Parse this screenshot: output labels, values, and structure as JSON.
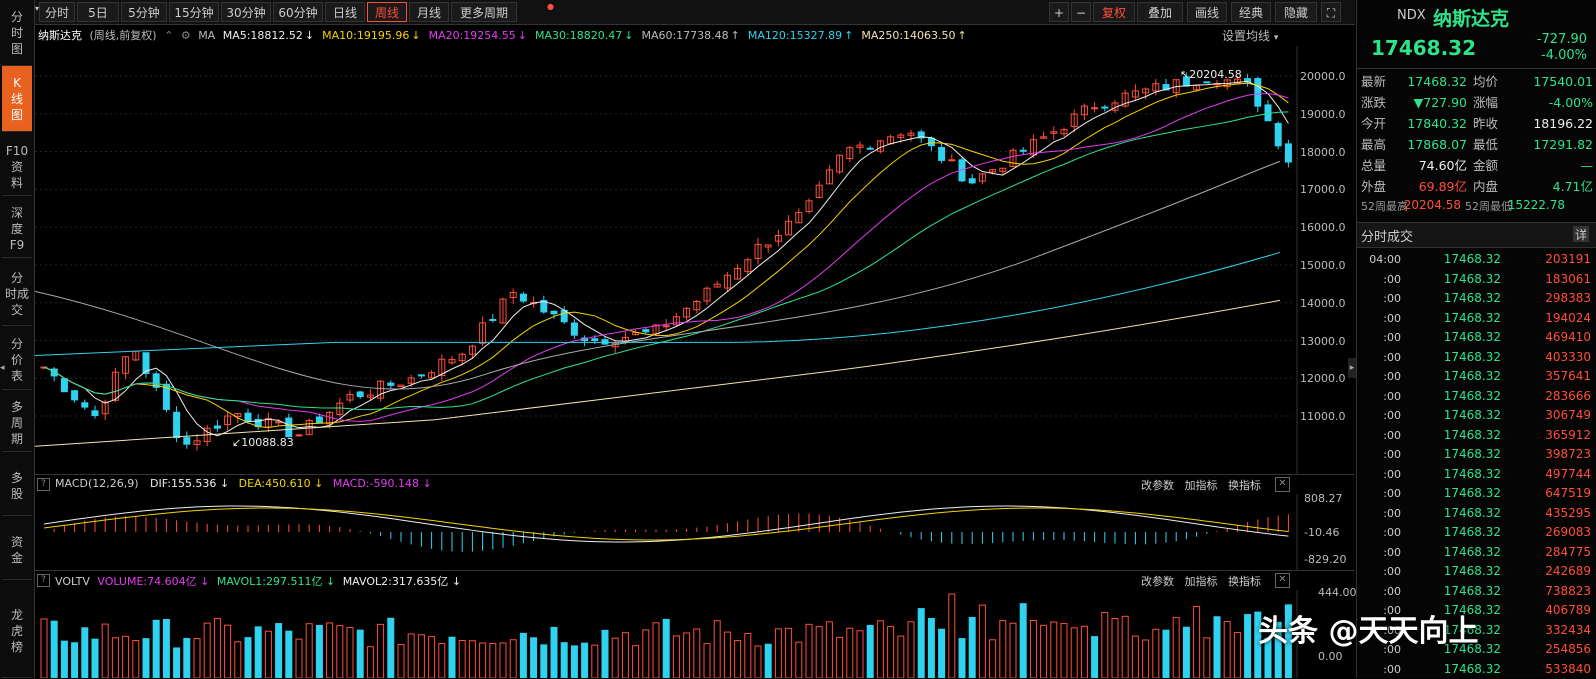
{
  "left_nav": [
    {
      "label": "分\n时\n图",
      "active": false
    },
    {
      "label": "K\n线\n图",
      "active": true
    },
    {
      "label": "F10\n资\n料",
      "active": false
    },
    {
      "label": "深\n度\nF9",
      "active": false
    },
    {
      "label": "分\n时成\n交",
      "active": false
    },
    {
      "label": "分\n价\n表",
      "active": false
    },
    {
      "label": "多\n周\n期",
      "active": false
    },
    {
      "label": "多\n股",
      "active": false
    },
    {
      "label": "资\n金",
      "active": false
    },
    {
      "label": "龙\n虎\n榜",
      "active": false
    }
  ],
  "toolbar": {
    "periods": [
      "分时",
      "5日",
      "5分钟",
      "15分钟",
      "30分钟",
      "60分钟",
      "日线",
      "周线",
      "月线",
      "更多周期"
    ],
    "active_period": "周线",
    "right": [
      "+",
      "−",
      "复权",
      "叠加",
      "画线",
      "经典",
      "隐藏"
    ],
    "more_dot": "●"
  },
  "legend": {
    "name": "纳斯达克",
    "mode": "(周线,前复权)",
    "ma_label": "MA",
    "items": [
      {
        "text": "MA5:18812.52",
        "arrow": "↓",
        "color": "#eeeeee"
      },
      {
        "text": "MA10:19195.96",
        "arrow": "↓",
        "color": "#f5d300"
      },
      {
        "text": "MA20:19254.55",
        "arrow": "↓",
        "color": "#e23cf0"
      },
      {
        "text": "MA30:18820.47",
        "arrow": "↓",
        "color": "#2ee38a"
      },
      {
        "text": "MA60:17738.48",
        "arrow": "↑",
        "color": "#bbbbbb"
      },
      {
        "text": "MA120:15327.89",
        "arrow": "↑",
        "color": "#2fd3f0"
      },
      {
        "text": "MA250:14063.50",
        "arrow": "↑",
        "color": "#f0e6b0"
      }
    ],
    "settings": "设置均线"
  },
  "main_axis": [
    "20000.0",
    "19000.0",
    "18000.0",
    "17000.0",
    "16000.0",
    "15000.0",
    "14000.0",
    "13000.0",
    "12000.0",
    "11000.0"
  ],
  "annotations": {
    "high": "20204.58",
    "low": "10088.83"
  },
  "macd": {
    "label": "MACD(12,26,9)",
    "dif": "DIF:155.536",
    "dif_arrow": "↓",
    "dea": "DEA:450.610",
    "dea_arrow": "↓",
    "macd": "MACD:-590.148",
    "macd_arrow": "↓",
    "links": [
      "改参数",
      "加指标",
      "换指标"
    ],
    "axis": [
      "808.27",
      "-10.46",
      "-829.20"
    ]
  },
  "volume": {
    "label": "VOLTV",
    "vol": "VOLUME:74.604亿",
    "vol_arrow": "↓",
    "mavol1": "MAVOL1:297.511亿",
    "mavol1_arrow": "↓",
    "mavol2": "MAVOL2:317.635亿",
    "mavol2_arrow": "↓",
    "links": [
      "改参数",
      "加指标",
      "换指标"
    ],
    "axis": [
      "444.00",
      "0.00"
    ]
  },
  "quote": {
    "code": "NDX",
    "name": "纳斯达克",
    "price": "17468.32",
    "change": "-727.90",
    "change_pct": "-4.00%",
    "rows": [
      {
        "k1": "最新",
        "v1": "17468.32",
        "c1": "down",
        "k2": "均价",
        "v2": "17540.01",
        "c2": "down"
      },
      {
        "k1": "涨跌",
        "v1": "▼727.90",
        "c1": "down",
        "k2": "涨幅",
        "v2": "-4.00%",
        "c2": "down"
      },
      {
        "k1": "今开",
        "v1": "17840.32",
        "c1": "down",
        "k2": "昨收",
        "v2": "18196.22",
        "c2": "white"
      },
      {
        "k1": "最高",
        "v1": "17868.07",
        "c1": "down",
        "k2": "最低",
        "v2": "17291.82",
        "c2": "down"
      },
      {
        "k1": "总量",
        "v1": "74.60亿",
        "c1": "white",
        "k2": "金额",
        "v2": "—",
        "c2": "down"
      },
      {
        "k1": "外盘",
        "v1": "69.89亿",
        "c1": "up",
        "k2": "内盘",
        "v2": "4.71亿",
        "c2": "green"
      }
    ],
    "w52_high_label": "52周最高",
    "w52_high": "20204.58",
    "w52_low_label": "52周最低",
    "w52_low": "15222.78"
  },
  "ticks": {
    "title": "分时成交",
    "detail_label": "详",
    "rows": [
      {
        "t": "04:00",
        "p": "17468.32",
        "v": "203191"
      },
      {
        "t": ":00",
        "p": "17468.32",
        "v": "183061"
      },
      {
        "t": ":00",
        "p": "17468.32",
        "v": "298383"
      },
      {
        "t": ":00",
        "p": "17468.32",
        "v": "194024"
      },
      {
        "t": ":00",
        "p": "17468.32",
        "v": "469410"
      },
      {
        "t": ":00",
        "p": "17468.32",
        "v": "403330"
      },
      {
        "t": ":00",
        "p": "17468.32",
        "v": "357641"
      },
      {
        "t": ":00",
        "p": "17468.32",
        "v": "283666"
      },
      {
        "t": ":00",
        "p": "17468.32",
        "v": "306749"
      },
      {
        "t": ":00",
        "p": "17468.32",
        "v": "365912"
      },
      {
        "t": ":00",
        "p": "17468.32",
        "v": "398723"
      },
      {
        "t": ":00",
        "p": "17468.32",
        "v": "497744"
      },
      {
        "t": ":00",
        "p": "17468.32",
        "v": "647519"
      },
      {
        "t": ":00",
        "p": "17468.32",
        "v": "435295"
      },
      {
        "t": ":00",
        "p": "17468.32",
        "v": "269083"
      },
      {
        "t": ":00",
        "p": "17468.32",
        "v": "284775"
      },
      {
        "t": ":00",
        "p": "17468.32",
        "v": "242689"
      },
      {
        "t": ":00",
        "p": "17468.32",
        "v": "738823"
      },
      {
        "t": ":00",
        "p": "17468.32",
        "v": "406789"
      },
      {
        "t": ":00",
        "p": "17468.32",
        "v": "332434"
      },
      {
        "t": ":00",
        "p": "17468.32",
        "v": "254856"
      },
      {
        "t": ":00",
        "p": "17468.32",
        "v": "533840"
      }
    ]
  },
  "watermark": "头条 @天天向上",
  "colors": {
    "up": "#ff4e3a",
    "down": "#2fd3f0",
    "bg": "#000000",
    "accent": "#e8611f"
  }
}
